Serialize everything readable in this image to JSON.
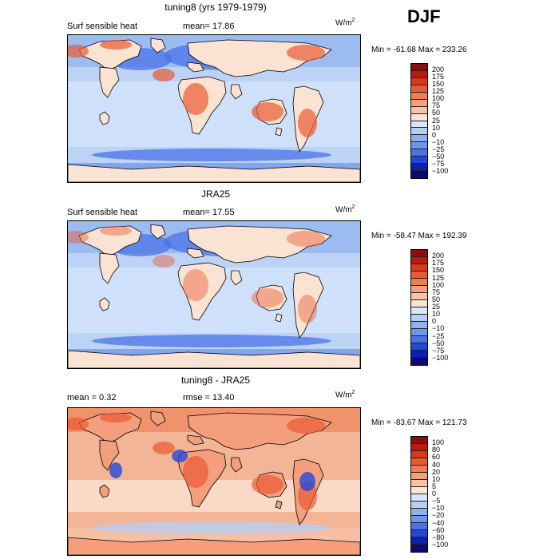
{
  "season": "DJF",
  "panels": [
    {
      "title": "tuning8 (yrs 1979-1979)",
      "left_label": "Surf sensible heat",
      "mid_label": "mean=   17.86",
      "units": "W/m",
      "units_sup": "2",
      "minmax": "Min = -61.68 Max = 233.26",
      "colorbar_labels": [
        "200",
        "175",
        "150",
        "125",
        "100",
        "75",
        "50",
        "25",
        "10",
        "0",
        "−10",
        "−25",
        "−50",
        "−75",
        "−100"
      ],
      "colorbar_colors": [
        "#8c0d0d",
        "#b81c10",
        "#d9381d",
        "#e95a32",
        "#f07c52",
        "#f39e7c",
        "#f7c2a6",
        "#fbe3d3",
        "#d6e6fb",
        "#b6cff5",
        "#8fb2ef",
        "#6e96ea",
        "#4a73e6",
        "#2348d9",
        "#0f1fb0",
        "#0a0a7a"
      ]
    },
    {
      "title": "JRA25",
      "left_label": "Surf sensible heat",
      "mid_label": "mean=   17.55",
      "units": "W/m",
      "units_sup": "2",
      "minmax": "Min = -58.47 Max = 192.39",
      "colorbar_labels": [
        "200",
        "175",
        "150",
        "125",
        "100",
        "75",
        "50",
        "25",
        "10",
        "0",
        "−10",
        "−25",
        "−50",
        "−75",
        "−100"
      ],
      "colorbar_colors": [
        "#8c0d0d",
        "#b81c10",
        "#d9381d",
        "#e95a32",
        "#f07c52",
        "#f39e7c",
        "#f7c2a6",
        "#fbe3d3",
        "#d6e6fb",
        "#b6cff5",
        "#8fb2ef",
        "#6e96ea",
        "#4a73e6",
        "#2348d9",
        "#0f1fb0",
        "#0a0a7a"
      ]
    },
    {
      "title": "tuning8 - JRA25",
      "left_label": "mean =    0.32",
      "mid_label": "rmse =   13.40",
      "units": "W/m",
      "units_sup": "2",
      "minmax": "Min = -83.67 Max = 121.73",
      "colorbar_labels": [
        "100",
        "80",
        "60",
        "40",
        "20",
        "10",
        "5",
        "0",
        "−5",
        "−10",
        "−20",
        "−40",
        "−60",
        "−80",
        "−100"
      ],
      "colorbar_colors": [
        "#8c0d0d",
        "#b81c10",
        "#d9381d",
        "#e95a32",
        "#f07c52",
        "#f39e7c",
        "#f7c2a6",
        "#fbe3d3",
        "#d6e6fb",
        "#b6cff5",
        "#8fb2ef",
        "#6e96ea",
        "#4a73e6",
        "#2348d9",
        "#0f1fb0",
        "#0a0a7a"
      ]
    }
  ]
}
